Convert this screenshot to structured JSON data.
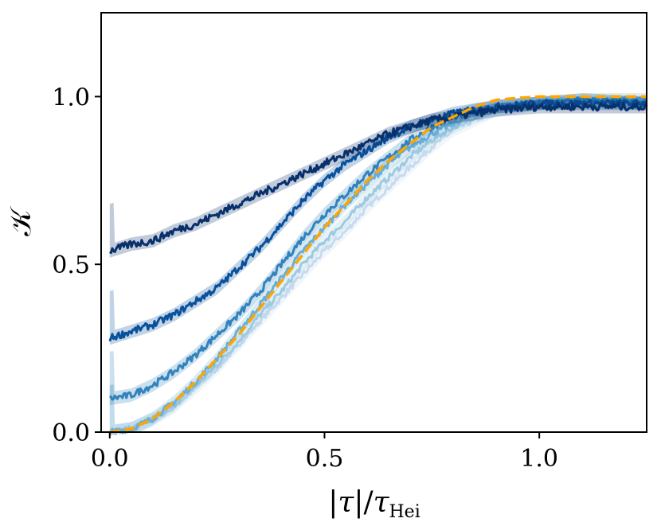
{
  "chart_data": {
    "type": "line",
    "xlabel": "|τ|/τ_Hei",
    "xlabel_parts": {
      "bar1": "|",
      "tau": "τ",
      "bar2": "|/",
      "tau2": "τ",
      "sub": "Hei"
    },
    "ylabel": "𝒦",
    "xlim": [
      -0.02,
      1.25
    ],
    "ylim": [
      0.0,
      1.25
    ],
    "xticks": [
      0.0,
      0.5,
      1.0
    ],
    "xtick_labels": [
      "0.0",
      "0.5",
      "1.0"
    ],
    "yticks": [
      0.0,
      0.5,
      1.0
    ],
    "ytick_labels": [
      "0.0",
      "0.5",
      "1.0"
    ],
    "grid": false,
    "legend": "none",
    "series": [
      {
        "color": "#c6dbef",
        "x": [
          0.0,
          0.05,
          0.1,
          0.15,
          0.2,
          0.25,
          0.3,
          0.35,
          0.4,
          0.45,
          0.5,
          0.55,
          0.6,
          0.65,
          0.7,
          0.75,
          0.8,
          0.85,
          0.9,
          1.0,
          1.1,
          1.25
        ],
        "y": [
          0.0,
          0.01,
          0.035,
          0.075,
          0.13,
          0.19,
          0.26,
          0.33,
          0.4,
          0.47,
          0.54,
          0.6,
          0.67,
          0.73,
          0.79,
          0.85,
          0.9,
          0.93,
          0.96,
          0.98,
          0.98,
          0.98
        ]
      },
      {
        "color": "#9ecae1",
        "x": [
          0.0,
          0.05,
          0.1,
          0.15,
          0.2,
          0.25,
          0.3,
          0.35,
          0.4,
          0.45,
          0.5,
          0.55,
          0.6,
          0.65,
          0.7,
          0.75,
          0.8,
          0.85,
          0.9,
          1.0,
          1.1,
          1.25
        ],
        "y": [
          0.0,
          0.01,
          0.04,
          0.08,
          0.14,
          0.2,
          0.27,
          0.35,
          0.42,
          0.5,
          0.57,
          0.63,
          0.7,
          0.76,
          0.82,
          0.87,
          0.91,
          0.94,
          0.96,
          0.98,
          0.99,
          0.98
        ]
      },
      {
        "color": "#6baed6",
        "x": [
          0.0,
          0.05,
          0.1,
          0.15,
          0.2,
          0.25,
          0.3,
          0.35,
          0.4,
          0.45,
          0.5,
          0.55,
          0.6,
          0.65,
          0.7,
          0.75,
          0.8,
          0.85,
          0.9,
          1.0,
          1.1,
          1.25
        ],
        "y": [
          0.0,
          0.01,
          0.04,
          0.09,
          0.15,
          0.22,
          0.3,
          0.38,
          0.46,
          0.54,
          0.61,
          0.68,
          0.74,
          0.8,
          0.85,
          0.89,
          0.92,
          0.95,
          0.97,
          0.98,
          0.99,
          0.99
        ]
      },
      {
        "color": "#3182bd",
        "x": [
          0.0,
          0.05,
          0.1,
          0.15,
          0.2,
          0.25,
          0.3,
          0.35,
          0.4,
          0.45,
          0.5,
          0.55,
          0.6,
          0.65,
          0.7,
          0.75,
          0.8,
          0.85,
          0.9,
          1.0,
          1.1,
          1.25
        ],
        "y": [
          0.1,
          0.11,
          0.14,
          0.18,
          0.23,
          0.29,
          0.35,
          0.42,
          0.5,
          0.58,
          0.65,
          0.71,
          0.77,
          0.82,
          0.87,
          0.91,
          0.94,
          0.96,
          0.97,
          0.98,
          0.99,
          0.98
        ]
      },
      {
        "color": "#08519c",
        "x": [
          0.0,
          0.05,
          0.1,
          0.15,
          0.2,
          0.25,
          0.3,
          0.35,
          0.4,
          0.45,
          0.5,
          0.55,
          0.6,
          0.65,
          0.7,
          0.75,
          0.8,
          0.85,
          0.9,
          1.0,
          1.1,
          1.25
        ],
        "y": [
          0.28,
          0.3,
          0.32,
          0.35,
          0.39,
          0.43,
          0.49,
          0.55,
          0.62,
          0.69,
          0.75,
          0.8,
          0.84,
          0.88,
          0.91,
          0.93,
          0.95,
          0.96,
          0.97,
          0.98,
          0.98,
          0.98
        ]
      },
      {
        "color": "#08306b",
        "x": [
          0.0,
          0.05,
          0.1,
          0.15,
          0.2,
          0.25,
          0.3,
          0.35,
          0.4,
          0.45,
          0.5,
          0.55,
          0.6,
          0.65,
          0.7,
          0.75,
          0.8,
          0.85,
          0.9,
          1.0,
          1.1,
          1.25
        ],
        "y": [
          0.54,
          0.56,
          0.57,
          0.6,
          0.62,
          0.65,
          0.68,
          0.71,
          0.74,
          0.77,
          0.8,
          0.83,
          0.86,
          0.89,
          0.91,
          0.93,
          0.94,
          0.95,
          0.96,
          0.97,
          0.97,
          0.97
        ]
      }
    ],
    "reference": {
      "color": "#ffa500",
      "style": "dashed",
      "x": [
        0.0,
        0.05,
        0.1,
        0.15,
        0.2,
        0.25,
        0.3,
        0.35,
        0.4,
        0.45,
        0.5,
        0.55,
        0.6,
        0.65,
        0.7,
        0.75,
        0.8,
        0.85,
        0.9,
        0.95,
        1.0,
        1.1,
        1.25
      ],
      "y": [
        0.0,
        0.01,
        0.04,
        0.09,
        0.15,
        0.22,
        0.29,
        0.37,
        0.45,
        0.53,
        0.61,
        0.68,
        0.75,
        0.81,
        0.86,
        0.91,
        0.94,
        0.97,
        0.99,
        0.996,
        1.0,
        1.0,
        1.0
      ]
    }
  }
}
